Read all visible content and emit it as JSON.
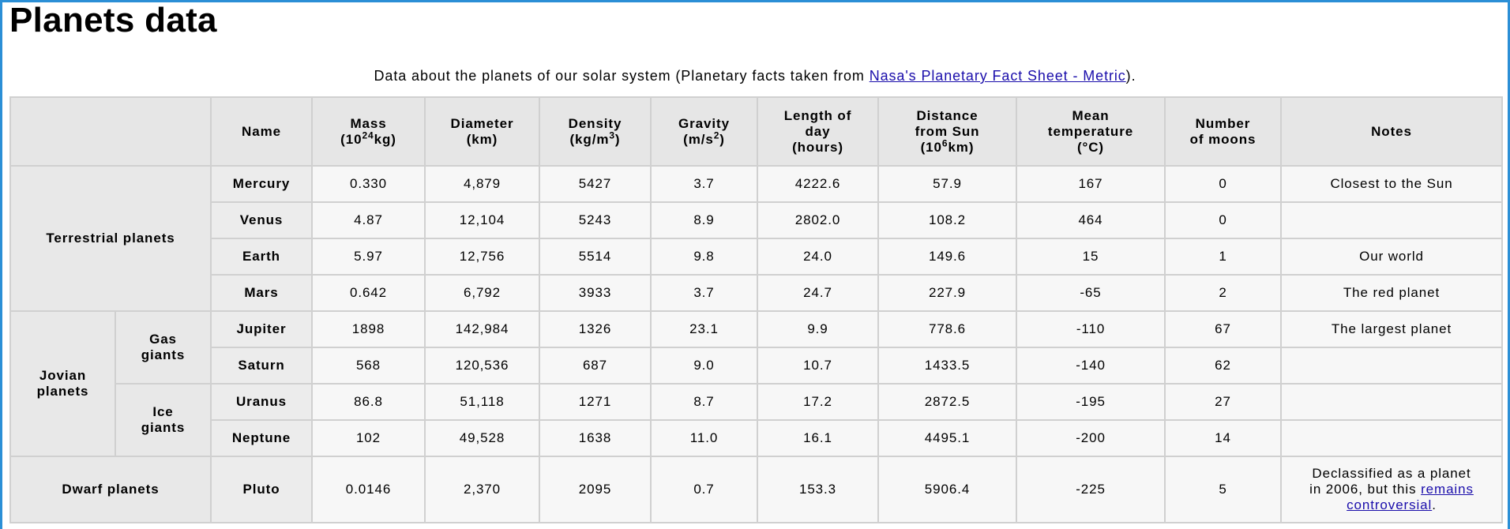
{
  "page": {
    "title": "Planets data",
    "caption_text": "Data about the planets of our solar system (Planetary facts taken from ",
    "caption_link": "Nasa's Planetary Fact Sheet - Metric",
    "caption_end": ")."
  },
  "header": {
    "name": "Name",
    "mass_line1": "Mass",
    "mass_pre": "(10",
    "mass_sup": "24",
    "mass_post": "kg)",
    "diameter_line1": "Diameter",
    "diameter_line2": "(km)",
    "density_line1": "Density",
    "density_pre": "(kg/m",
    "density_sup": "3",
    "density_post": ")",
    "gravity_line1": "Gravity",
    "gravity_pre": "(m/s",
    "gravity_sup": "2",
    "gravity_post": ")",
    "day_line1": "Length of",
    "day_line2": "day",
    "day_line3": "(hours)",
    "distance_line1": "Distance",
    "distance_line2": "from Sun",
    "distance_pre": "(10",
    "distance_sup": "6",
    "distance_post": "km)",
    "temp_line1": "Mean",
    "temp_line2": "temperature",
    "temp_line3": "(°C)",
    "moons_line1": "Number",
    "moons_line2": "of moons",
    "notes": "Notes"
  },
  "groups": {
    "terrestrial": "Terrestrial planets",
    "jovian_line1": "Jovian",
    "jovian_line2": "planets",
    "gas_line1": "Gas",
    "gas_line2": "giants",
    "ice_line1": "Ice",
    "ice_line2": "giants",
    "dwarf": "Dwarf planets"
  },
  "planets": [
    {
      "name": "Mercury",
      "mass": "0.330",
      "diameter": "4,879",
      "density": "5427",
      "gravity": "3.7",
      "day": "4222.6",
      "distance": "57.9",
      "temp": "167",
      "moons": "0",
      "notes": "Closest to the Sun"
    },
    {
      "name": "Venus",
      "mass": "4.87",
      "diameter": "12,104",
      "density": "5243",
      "gravity": "8.9",
      "day": "2802.0",
      "distance": "108.2",
      "temp": "464",
      "moons": "0",
      "notes": ""
    },
    {
      "name": "Earth",
      "mass": "5.97",
      "diameter": "12,756",
      "density": "5514",
      "gravity": "9.8",
      "day": "24.0",
      "distance": "149.6",
      "temp": "15",
      "moons": "1",
      "notes": "Our world"
    },
    {
      "name": "Mars",
      "mass": "0.642",
      "diameter": "6,792",
      "density": "3933",
      "gravity": "3.7",
      "day": "24.7",
      "distance": "227.9",
      "temp": "-65",
      "moons": "2",
      "notes": "The red planet"
    },
    {
      "name": "Jupiter",
      "mass": "1898",
      "diameter": "142,984",
      "density": "1326",
      "gravity": "23.1",
      "day": "9.9",
      "distance": "778.6",
      "temp": "-110",
      "moons": "67",
      "notes": "The largest planet"
    },
    {
      "name": "Saturn",
      "mass": "568",
      "diameter": "120,536",
      "density": "687",
      "gravity": "9.0",
      "day": "10.7",
      "distance": "1433.5",
      "temp": "-140",
      "moons": "62",
      "notes": ""
    },
    {
      "name": "Uranus",
      "mass": "86.8",
      "diameter": "51,118",
      "density": "1271",
      "gravity": "8.7",
      "day": "17.2",
      "distance": "2872.5",
      "temp": "-195",
      "moons": "27",
      "notes": ""
    },
    {
      "name": "Neptune",
      "mass": "102",
      "diameter": "49,528",
      "density": "1638",
      "gravity": "11.0",
      "day": "16.1",
      "distance": "4495.1",
      "temp": "-200",
      "moons": "14",
      "notes": ""
    },
    {
      "name": "Pluto",
      "mass": "0.0146",
      "diameter": "2,370",
      "density": "2095",
      "gravity": "0.7",
      "day": "153.3",
      "distance": "5906.4",
      "temp": "-225",
      "moons": "5",
      "notes_line1": "Declassified as a planet",
      "notes_line2_pre": "in 2006, but this ",
      "notes_link_part1": "remains",
      "notes_link_part2": "controversial",
      "notes_end": "."
    }
  ]
}
